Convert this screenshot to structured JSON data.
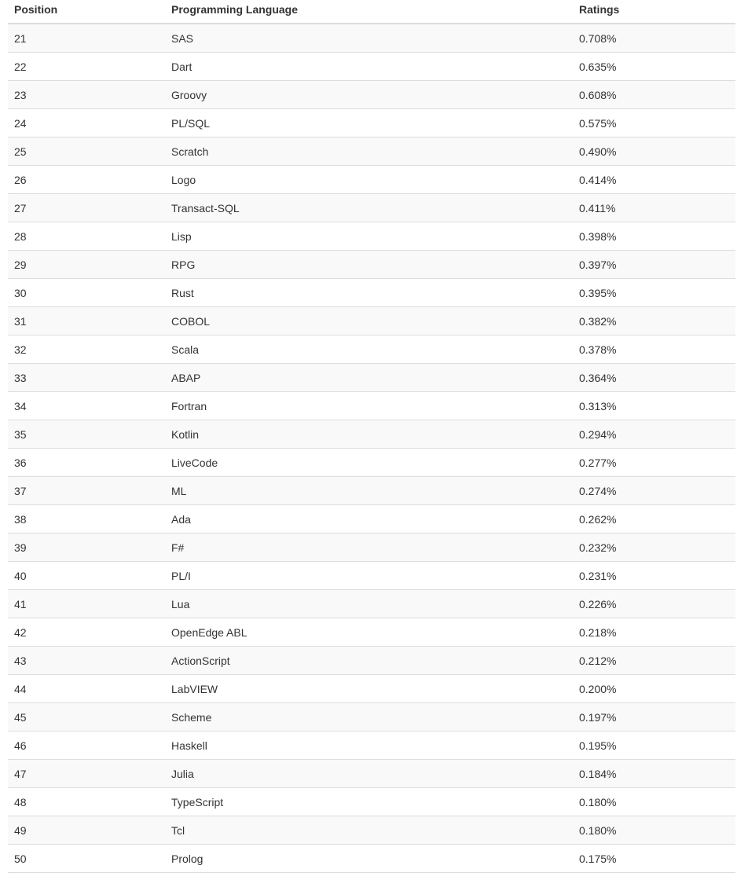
{
  "table": {
    "headers": [
      "Position",
      "Programming Language",
      "Ratings"
    ],
    "rows": [
      [
        "21",
        "SAS",
        "0.708%"
      ],
      [
        "22",
        "Dart",
        "0.635%"
      ],
      [
        "23",
        "Groovy",
        "0.608%"
      ],
      [
        "24",
        "PL/SQL",
        "0.575%"
      ],
      [
        "25",
        "Scratch",
        "0.490%"
      ],
      [
        "26",
        "Logo",
        "0.414%"
      ],
      [
        "27",
        "Transact-SQL",
        "0.411%"
      ],
      [
        "28",
        "Lisp",
        "0.398%"
      ],
      [
        "29",
        "RPG",
        "0.397%"
      ],
      [
        "30",
        "Rust",
        "0.395%"
      ],
      [
        "31",
        "COBOL",
        "0.382%"
      ],
      [
        "32",
        "Scala",
        "0.378%"
      ],
      [
        "33",
        "ABAP",
        "0.364%"
      ],
      [
        "34",
        "Fortran",
        "0.313%"
      ],
      [
        "35",
        "Kotlin",
        "0.294%"
      ],
      [
        "36",
        "LiveCode",
        "0.277%"
      ],
      [
        "37",
        "ML",
        "0.274%"
      ],
      [
        "38",
        "Ada",
        "0.262%"
      ],
      [
        "39",
        "F#",
        "0.232%"
      ],
      [
        "40",
        "PL/I",
        "0.231%"
      ],
      [
        "41",
        "Lua",
        "0.226%"
      ],
      [
        "42",
        "OpenEdge ABL",
        "0.218%"
      ],
      [
        "43",
        "ActionScript",
        "0.212%"
      ],
      [
        "44",
        "LabVIEW",
        "0.200%"
      ],
      [
        "45",
        "Scheme",
        "0.197%"
      ],
      [
        "46",
        "Haskell",
        "0.195%"
      ],
      [
        "47",
        "Julia",
        "0.184%"
      ],
      [
        "48",
        "TypeScript",
        "0.180%"
      ],
      [
        "49",
        "Tcl",
        "0.180%"
      ],
      [
        "50",
        "Prolog",
        "0.175%"
      ]
    ]
  }
}
